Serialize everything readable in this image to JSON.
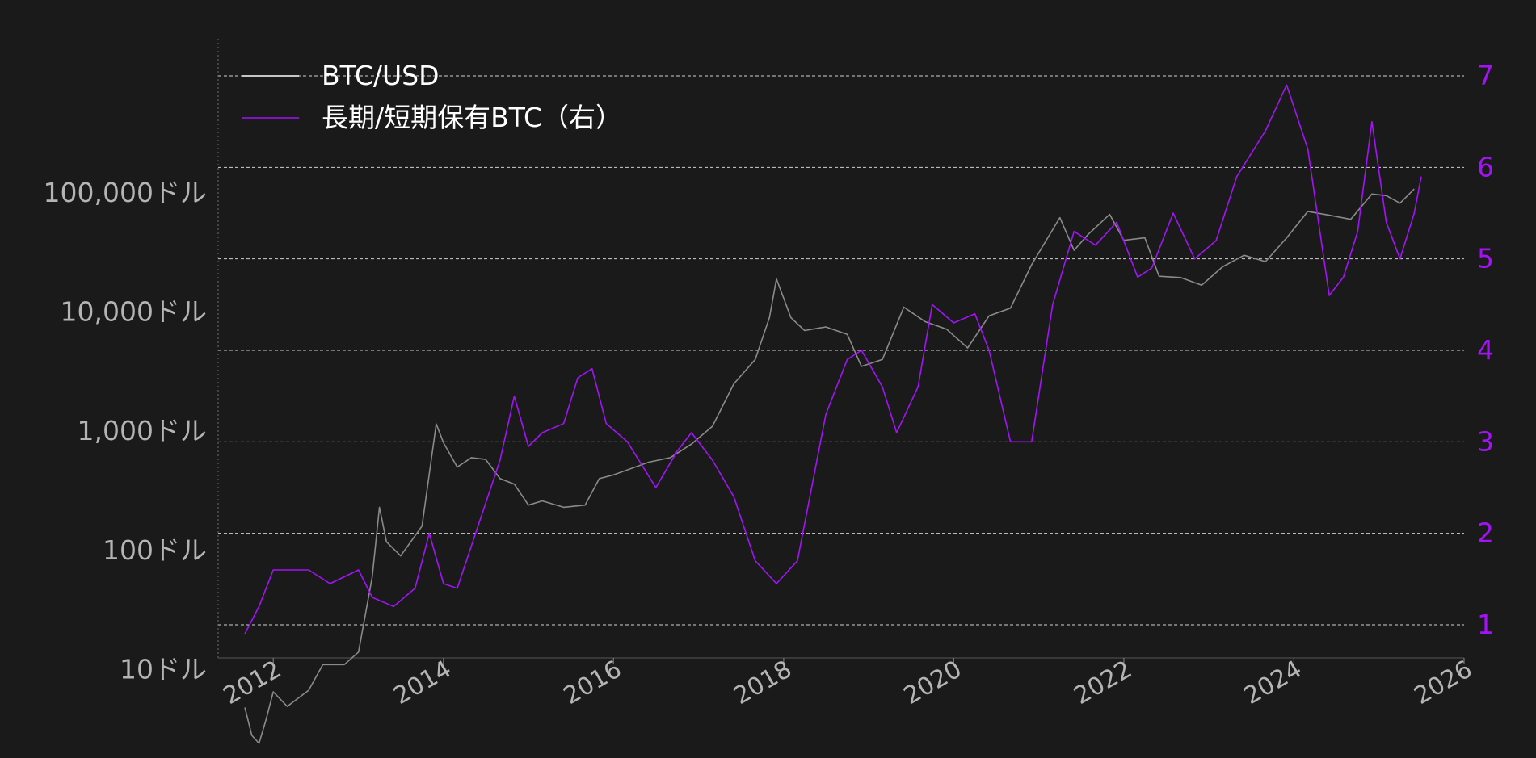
{
  "chart_data": {
    "type": "line",
    "title": "",
    "xlabel": "",
    "ylabel_left": "",
    "ylabel_right": "",
    "x_range": [
      "2011-01-01",
      "2026-01-01"
    ],
    "x_ticks": [
      "2012",
      "2014",
      "2016",
      "2018",
      "2020",
      "2022",
      "2024",
      "2026"
    ],
    "left_axis": {
      "scale": "log",
      "range": [
        1,
        100000
      ],
      "ticks": [
        {
          "value": 10,
          "label": "10ドル"
        },
        {
          "value": 100,
          "label": "100ドル"
        },
        {
          "value": 1000,
          "label": "1,000ドル"
        },
        {
          "value": 10000,
          "label": "10,000ドル"
        },
        {
          "value": 100000,
          "label": "100,000ドル"
        }
      ]
    },
    "right_axis": {
      "scale": "linear",
      "range": [
        1,
        7
      ],
      "ticks": [
        {
          "value": 1,
          "label": "1"
        },
        {
          "value": 2,
          "label": "2"
        },
        {
          "value": 3,
          "label": "3"
        },
        {
          "value": 4,
          "label": "4"
        },
        {
          "value": 5,
          "label": "5"
        },
        {
          "value": 6,
          "label": "6"
        },
        {
          "value": 7,
          "label": "7"
        }
      ]
    },
    "grid": "horizontal dashed at right-axis ticks",
    "legend": "top-left",
    "series": [
      {
        "name": "BTC/USD",
        "axis": "left",
        "color": "#8a8a8a",
        "legend_color": "#ffffff",
        "points": [
          [
            "2011-09-01",
            4.8
          ],
          [
            "2011-10-01",
            2.8
          ],
          [
            "2011-11-01",
            2.4
          ],
          [
            "2011-12-01",
            3.8
          ],
          [
            "2012-01-01",
            6.5
          ],
          [
            "2012-03-01",
            4.9
          ],
          [
            "2012-06-01",
            6.7
          ],
          [
            "2012-08-01",
            11
          ],
          [
            "2012-11-01",
            11
          ],
          [
            "2013-01-01",
            14
          ],
          [
            "2013-03-01",
            60
          ],
          [
            "2013-04-01",
            230
          ],
          [
            "2013-05-01",
            118
          ],
          [
            "2013-07-01",
            90
          ],
          [
            "2013-10-01",
            160
          ],
          [
            "2013-12-01",
            1150
          ],
          [
            "2014-01-01",
            800
          ],
          [
            "2014-03-01",
            500
          ],
          [
            "2014-05-01",
            600
          ],
          [
            "2014-07-01",
            580
          ],
          [
            "2014-09-01",
            400
          ],
          [
            "2014-11-01",
            360
          ],
          [
            "2015-01-01",
            240
          ],
          [
            "2015-03-01",
            260
          ],
          [
            "2015-06-01",
            230
          ],
          [
            "2015-09-01",
            240
          ],
          [
            "2015-11-01",
            400
          ],
          [
            "2016-01-01",
            430
          ],
          [
            "2016-06-01",
            550
          ],
          [
            "2016-09-01",
            600
          ],
          [
            "2016-12-01",
            780
          ],
          [
            "2017-03-01",
            1100
          ],
          [
            "2017-06-01",
            2500
          ],
          [
            "2017-09-01",
            4000
          ],
          [
            "2017-11-01",
            9000
          ],
          [
            "2017-12-01",
            19000
          ],
          [
            "2018-02-01",
            9000
          ],
          [
            "2018-04-01",
            7000
          ],
          [
            "2018-07-01",
            7500
          ],
          [
            "2018-10-01",
            6500
          ],
          [
            "2018-12-01",
            3500
          ],
          [
            "2019-03-01",
            4000
          ],
          [
            "2019-06-01",
            11000
          ],
          [
            "2019-09-01",
            8300
          ],
          [
            "2019-12-01",
            7200
          ],
          [
            "2020-03-01",
            5000
          ],
          [
            "2020-06-01",
            9300
          ],
          [
            "2020-09-01",
            10800
          ],
          [
            "2020-12-01",
            25000
          ],
          [
            "2021-04-01",
            62000
          ],
          [
            "2021-06-01",
            33000
          ],
          [
            "2021-08-01",
            45000
          ],
          [
            "2021-11-01",
            66000
          ],
          [
            "2022-01-01",
            40000
          ],
          [
            "2022-04-01",
            42000
          ],
          [
            "2022-06-01",
            20000
          ],
          [
            "2022-09-01",
            19500
          ],
          [
            "2022-12-01",
            16800
          ],
          [
            "2023-03-01",
            24000
          ],
          [
            "2023-06-01",
            30000
          ],
          [
            "2023-09-01",
            26500
          ],
          [
            "2023-12-01",
            42000
          ],
          [
            "2024-03-01",
            70000
          ],
          [
            "2024-06-01",
            65000
          ],
          [
            "2024-09-01",
            60000
          ],
          [
            "2024-12-01",
            98000
          ],
          [
            "2025-02-01",
            95000
          ],
          [
            "2025-04-01",
            82000
          ],
          [
            "2025-06-01",
            108000
          ]
        ]
      },
      {
        "name": "長期/短期保有BTC（右）",
        "axis": "right",
        "color": "#a313f5",
        "legend_color": "#a313f5",
        "points": [
          [
            "2011-09-01",
            0.9
          ],
          [
            "2011-11-01",
            1.2
          ],
          [
            "2012-01-01",
            1.6
          ],
          [
            "2012-06-01",
            1.6
          ],
          [
            "2012-09-01",
            1.45
          ],
          [
            "2013-01-01",
            1.6
          ],
          [
            "2013-03-01",
            1.3
          ],
          [
            "2013-06-01",
            1.2
          ],
          [
            "2013-09-01",
            1.4
          ],
          [
            "2013-11-01",
            2.0
          ],
          [
            "2014-01-01",
            1.45
          ],
          [
            "2014-03-01",
            1.4
          ],
          [
            "2014-06-01",
            2.1
          ],
          [
            "2014-09-01",
            2.8
          ],
          [
            "2014-11-01",
            3.5
          ],
          [
            "2015-01-01",
            2.95
          ],
          [
            "2015-03-01",
            3.1
          ],
          [
            "2015-06-01",
            3.2
          ],
          [
            "2015-08-01",
            3.7
          ],
          [
            "2015-10-01",
            3.8
          ],
          [
            "2015-12-01",
            3.2
          ],
          [
            "2016-03-01",
            3.0
          ],
          [
            "2016-07-01",
            2.5
          ],
          [
            "2016-10-01",
            2.9
          ],
          [
            "2016-12-01",
            3.1
          ],
          [
            "2017-03-01",
            2.8
          ],
          [
            "2017-06-01",
            2.4
          ],
          [
            "2017-09-01",
            1.7
          ],
          [
            "2017-12-01",
            1.45
          ],
          [
            "2018-03-01",
            1.7
          ],
          [
            "2018-07-01",
            3.3
          ],
          [
            "2018-10-01",
            3.9
          ],
          [
            "2018-12-01",
            4.0
          ],
          [
            "2019-03-01",
            3.6
          ],
          [
            "2019-05-01",
            3.1
          ],
          [
            "2019-08-01",
            3.6
          ],
          [
            "2019-10-01",
            4.5
          ],
          [
            "2020-01-01",
            4.3
          ],
          [
            "2020-04-01",
            4.4
          ],
          [
            "2020-06-01",
            4.0
          ],
          [
            "2020-09-01",
            3.0
          ],
          [
            "2020-12-01",
            3.0
          ],
          [
            "2021-03-01",
            4.5
          ],
          [
            "2021-06-01",
            5.3
          ],
          [
            "2021-09-01",
            5.15
          ],
          [
            "2021-12-01",
            5.4
          ],
          [
            "2022-03-01",
            4.8
          ],
          [
            "2022-05-01",
            4.9
          ],
          [
            "2022-08-01",
            5.5
          ],
          [
            "2022-11-01",
            5.0
          ],
          [
            "2023-02-01",
            5.2
          ],
          [
            "2023-05-01",
            5.9
          ],
          [
            "2023-09-01",
            6.4
          ],
          [
            "2023-12-01",
            6.9
          ],
          [
            "2024-03-01",
            6.2
          ],
          [
            "2024-06-01",
            4.6
          ],
          [
            "2024-08-01",
            4.8
          ],
          [
            "2024-10-01",
            5.3
          ],
          [
            "2024-12-01",
            6.5
          ],
          [
            "2025-02-01",
            5.4
          ],
          [
            "2025-04-01",
            5.0
          ],
          [
            "2025-06-01",
            5.5
          ],
          [
            "2025-07-01",
            5.9
          ]
        ]
      }
    ]
  }
}
